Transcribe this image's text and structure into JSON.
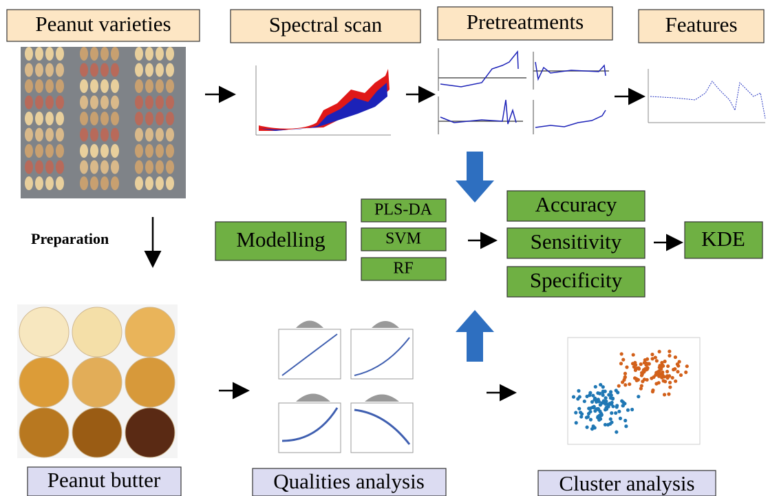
{
  "header": {
    "varieties": "Peanut varieties",
    "scan": "Spectral scan",
    "pretreatments": "Pretreatments",
    "features": "Features"
  },
  "preparation": "Preparation",
  "modelling": {
    "label": "Modelling",
    "methods": [
      "PLS-DA",
      "SVM",
      "RF"
    ]
  },
  "metrics": [
    "Accuracy",
    "Sensitivity",
    "Specificity"
  ],
  "kde": "KDE",
  "footer": {
    "butter": "Peanut butter",
    "qualities": "Qualities analysis",
    "cluster": "Cluster analysis"
  }
}
